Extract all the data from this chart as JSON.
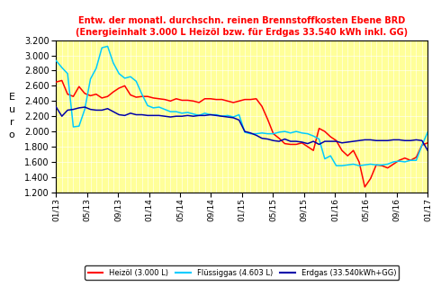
{
  "title_line1": "Entw. der monatl. durchschn. reinen Brennstoffkosten Ebene BRD",
  "title_line2": "(Energieinhalt 3.000 L Heizöl bzw. für Erdgas 33.540 kWh inkl. GG)",
  "ylabel": "E\nu\nr\no",
  "background_color": "#FFFF99",
  "ylim": [
    1.2,
    3.2
  ],
  "yticks": [
    1.2,
    1.4,
    1.6,
    1.8,
    2.0,
    2.2,
    2.4,
    2.6,
    2.8,
    3.0,
    3.2
  ],
  "xtick_labels": [
    "01/13",
    "05/13",
    "09/13",
    "01/14",
    "05/14",
    "09/14",
    "01/15",
    "05/15",
    "09/15",
    "01/16",
    "05/16",
    "09/16",
    "01/17"
  ],
  "legend_labels": [
    "Heizöl (3.000 L)",
    "Flüssiggas (4.603 L)",
    "Erdgas (33.540kWh+GG)"
  ],
  "colors": {
    "heizoel": "#FF0000",
    "fluessiggas": "#00CCFF",
    "erdgas": "#0000AA"
  },
  "heizoel": [
    2.65,
    2.67,
    2.49,
    2.46,
    2.59,
    2.5,
    2.47,
    2.49,
    2.44,
    2.46,
    2.52,
    2.57,
    2.6,
    2.48,
    2.45,
    2.46,
    2.46,
    2.44,
    2.43,
    2.42,
    2.4,
    2.43,
    2.41,
    2.41,
    2.4,
    2.38,
    2.43,
    2.43,
    2.42,
    2.42,
    2.4,
    2.38,
    2.4,
    2.42,
    2.42,
    2.43,
    2.33,
    2.16,
    1.97,
    1.91,
    1.84,
    1.83,
    1.83,
    1.85,
    1.8,
    1.75,
    2.04,
    2.0,
    1.93,
    1.88,
    1.75,
    1.68,
    1.75,
    1.6,
    1.27,
    1.38,
    1.56,
    1.55,
    1.52,
    1.57,
    1.62,
    1.65,
    1.62,
    1.66,
    1.82,
    1.85
  ],
  "fluessiggas": [
    2.93,
    2.84,
    2.76,
    2.06,
    2.07,
    2.29,
    2.69,
    2.83,
    3.1,
    3.12,
    2.9,
    2.76,
    2.7,
    2.72,
    2.66,
    2.49,
    2.34,
    2.31,
    2.32,
    2.29,
    2.26,
    2.26,
    2.24,
    2.25,
    2.23,
    2.21,
    2.24,
    2.22,
    2.22,
    2.2,
    2.21,
    2.19,
    2.22,
    1.99,
    1.97,
    1.97,
    1.98,
    1.97,
    1.97,
    1.99,
    2.0,
    1.98,
    2.0,
    1.98,
    1.97,
    1.94,
    1.9,
    1.64,
    1.68,
    1.55,
    1.55,
    1.56,
    1.57,
    1.55,
    1.56,
    1.57,
    1.56,
    1.56,
    1.57,
    1.6,
    1.61,
    1.6,
    1.62,
    1.62,
    1.82,
    1.99
  ],
  "erdgas": [
    2.32,
    2.2,
    2.28,
    2.29,
    2.31,
    2.32,
    2.29,
    2.28,
    2.28,
    2.3,
    2.26,
    2.22,
    2.21,
    2.24,
    2.22,
    2.22,
    2.21,
    2.21,
    2.21,
    2.2,
    2.19,
    2.2,
    2.2,
    2.21,
    2.2,
    2.21,
    2.21,
    2.22,
    2.21,
    2.2,
    2.19,
    2.18,
    2.15,
    2.0,
    1.98,
    1.95,
    1.91,
    1.9,
    1.88,
    1.87,
    1.9,
    1.87,
    1.87,
    1.86,
    1.84,
    1.87,
    1.83,
    1.87,
    1.87,
    1.87,
    1.85,
    1.86,
    1.87,
    1.88,
    1.89,
    1.89,
    1.88,
    1.88,
    1.88,
    1.89,
    1.89,
    1.88,
    1.88,
    1.89,
    1.88,
    1.75
  ]
}
